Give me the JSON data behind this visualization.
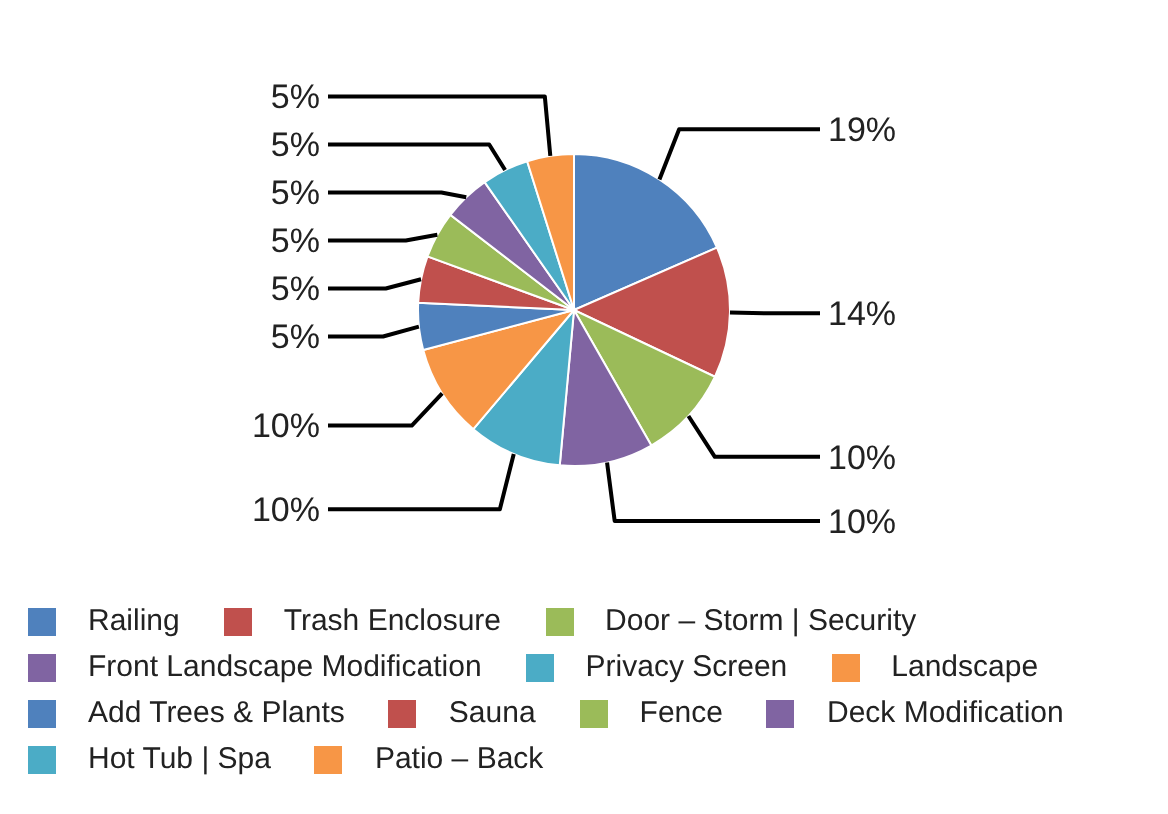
{
  "chart_data": {
    "type": "pie",
    "categories": [
      "Railing",
      "Trash Enclosure",
      "Door – Storm | Security",
      "Front Landscape Modification",
      "Privacy Screen",
      "Landscape",
      "Add Trees & Plants",
      "Sauna",
      "Fence",
      "Deck Modification",
      "Hot Tub | Spa",
      "Patio – Back"
    ],
    "values": [
      19,
      14,
      10,
      10,
      10,
      10,
      5,
      5,
      5,
      5,
      5,
      5
    ],
    "value_labels": [
      "19%",
      "14%",
      "10%",
      "10%",
      "10%",
      "10%",
      "5%",
      "5%",
      "5%",
      "5%",
      "5%",
      "5%"
    ],
    "colors": [
      "#4f81bd",
      "#c0504d",
      "#9bbb59",
      "#8064a2",
      "#4bacc6",
      "#f79646",
      "#4f81bd",
      "#c0504d",
      "#9bbb59",
      "#8064a2",
      "#4bacc6",
      "#f79646"
    ],
    "legend": "bottom"
  }
}
